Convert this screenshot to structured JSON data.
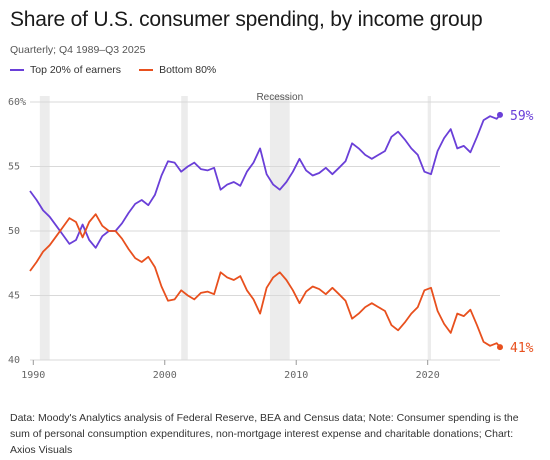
{
  "header": {
    "title": "Share of U.S. consumer spending, by income group",
    "subtitle": "Quarterly; Q4 1989–Q3 2025"
  },
  "footnote": "Data: Moody's Analytics analysis of Federal Reserve, BEA and Census data; Note: Consumer spending is the sum of personal consumption expenditures, non-mortgage interest expense and charitable donations; Chart: Axios Visuals",
  "colors": {
    "top20": "#6a3fd8",
    "bottom80": "#e8501e",
    "recession": "#ececec",
    "grid": "#d9d9d9"
  },
  "chart_data": {
    "type": "line",
    "xlim": [
      1989.75,
      2025.5
    ],
    "ylim": [
      40,
      60
    ],
    "x_ticks": [
      1990,
      2000,
      2010,
      2020
    ],
    "y_ticks": [
      40,
      45,
      50,
      55,
      60
    ],
    "y_tick_labels": [
      "40",
      "45",
      "50",
      "55",
      "60%"
    ],
    "grid": true,
    "legend_position": "top-left",
    "recession_label": "Recession",
    "recessions": [
      [
        1990.5,
        1991.25
      ],
      [
        2001.25,
        2001.75
      ],
      [
        2008.0,
        2009.5
      ],
      [
        2020.0,
        2020.25
      ]
    ],
    "series": [
      {
        "name": "Top 20% of earners",
        "end_label": "59%",
        "points": [
          [
            1989.75,
            53.1
          ],
          [
            1990.25,
            52.4
          ],
          [
            1990.75,
            51.6
          ],
          [
            1991.25,
            51.1
          ],
          [
            1991.75,
            50.4
          ],
          [
            1992.25,
            49.7
          ],
          [
            1992.75,
            49.0
          ],
          [
            1993.25,
            49.3
          ],
          [
            1993.75,
            50.5
          ],
          [
            1994.25,
            49.3
          ],
          [
            1994.75,
            48.7
          ],
          [
            1995.25,
            49.6
          ],
          [
            1995.75,
            50.0
          ],
          [
            1996.25,
            50.0
          ],
          [
            1996.75,
            50.6
          ],
          [
            1997.25,
            51.4
          ],
          [
            1997.75,
            52.1
          ],
          [
            1998.25,
            52.4
          ],
          [
            1998.75,
            52.0
          ],
          [
            1999.25,
            52.8
          ],
          [
            1999.75,
            54.3
          ],
          [
            2000.25,
            55.4
          ],
          [
            2000.75,
            55.3
          ],
          [
            2001.25,
            54.6
          ],
          [
            2001.75,
            55.0
          ],
          [
            2002.25,
            55.3
          ],
          [
            2002.75,
            54.8
          ],
          [
            2003.25,
            54.7
          ],
          [
            2003.75,
            54.9
          ],
          [
            2004.25,
            53.2
          ],
          [
            2004.75,
            53.6
          ],
          [
            2005.25,
            53.8
          ],
          [
            2005.75,
            53.5
          ],
          [
            2006.25,
            54.6
          ],
          [
            2006.75,
            55.3
          ],
          [
            2007.25,
            56.4
          ],
          [
            2007.75,
            54.4
          ],
          [
            2008.25,
            53.6
          ],
          [
            2008.75,
            53.2
          ],
          [
            2009.25,
            53.8
          ],
          [
            2009.75,
            54.6
          ],
          [
            2010.25,
            55.6
          ],
          [
            2010.75,
            54.7
          ],
          [
            2011.25,
            54.3
          ],
          [
            2011.75,
            54.5
          ],
          [
            2012.25,
            54.9
          ],
          [
            2012.75,
            54.4
          ],
          [
            2013.25,
            54.9
          ],
          [
            2013.75,
            55.4
          ],
          [
            2014.25,
            56.8
          ],
          [
            2014.75,
            56.4
          ],
          [
            2015.25,
            55.9
          ],
          [
            2015.75,
            55.6
          ],
          [
            2016.25,
            55.9
          ],
          [
            2016.75,
            56.2
          ],
          [
            2017.25,
            57.3
          ],
          [
            2017.75,
            57.7
          ],
          [
            2018.25,
            57.1
          ],
          [
            2018.75,
            56.4
          ],
          [
            2019.25,
            55.9
          ],
          [
            2019.75,
            54.6
          ],
          [
            2020.25,
            54.4
          ],
          [
            2020.75,
            56.2
          ],
          [
            2021.25,
            57.2
          ],
          [
            2021.75,
            57.9
          ],
          [
            2022.25,
            56.4
          ],
          [
            2022.75,
            56.6
          ],
          [
            2023.25,
            56.1
          ],
          [
            2023.75,
            57.3
          ],
          [
            2024.25,
            58.6
          ],
          [
            2024.75,
            58.9
          ],
          [
            2025.25,
            58.7
          ],
          [
            2025.5,
            59.0
          ]
        ]
      },
      {
        "name": "Bottom 80%",
        "end_label": "41%",
        "points": [
          [
            1989.75,
            46.9
          ],
          [
            1990.25,
            47.6
          ],
          [
            1990.75,
            48.4
          ],
          [
            1991.25,
            48.9
          ],
          [
            1991.75,
            49.6
          ],
          [
            1992.25,
            50.3
          ],
          [
            1992.75,
            51.0
          ],
          [
            1993.25,
            50.7
          ],
          [
            1993.75,
            49.5
          ],
          [
            1994.25,
            50.7
          ],
          [
            1994.75,
            51.3
          ],
          [
            1995.25,
            50.4
          ],
          [
            1995.75,
            50.0
          ],
          [
            1996.25,
            50.0
          ],
          [
            1996.75,
            49.4
          ],
          [
            1997.25,
            48.6
          ],
          [
            1997.75,
            47.9
          ],
          [
            1998.25,
            47.6
          ],
          [
            1998.75,
            48.0
          ],
          [
            1999.25,
            47.2
          ],
          [
            1999.75,
            45.7
          ],
          [
            2000.25,
            44.6
          ],
          [
            2000.75,
            44.7
          ],
          [
            2001.25,
            45.4
          ],
          [
            2001.75,
            45.0
          ],
          [
            2002.25,
            44.7
          ],
          [
            2002.75,
            45.2
          ],
          [
            2003.25,
            45.3
          ],
          [
            2003.75,
            45.1
          ],
          [
            2004.25,
            46.8
          ],
          [
            2004.75,
            46.4
          ],
          [
            2005.25,
            46.2
          ],
          [
            2005.75,
            46.5
          ],
          [
            2006.25,
            45.4
          ],
          [
            2006.75,
            44.7
          ],
          [
            2007.25,
            43.6
          ],
          [
            2007.75,
            45.6
          ],
          [
            2008.25,
            46.4
          ],
          [
            2008.75,
            46.8
          ],
          [
            2009.25,
            46.2
          ],
          [
            2009.75,
            45.4
          ],
          [
            2010.25,
            44.4
          ],
          [
            2010.75,
            45.3
          ],
          [
            2011.25,
            45.7
          ],
          [
            2011.75,
            45.5
          ],
          [
            2012.25,
            45.1
          ],
          [
            2012.75,
            45.6
          ],
          [
            2013.25,
            45.1
          ],
          [
            2013.75,
            44.6
          ],
          [
            2014.25,
            43.2
          ],
          [
            2014.75,
            43.6
          ],
          [
            2015.25,
            44.1
          ],
          [
            2015.75,
            44.4
          ],
          [
            2016.25,
            44.1
          ],
          [
            2016.75,
            43.8
          ],
          [
            2017.25,
            42.7
          ],
          [
            2017.75,
            42.3
          ],
          [
            2018.25,
            42.9
          ],
          [
            2018.75,
            43.6
          ],
          [
            2019.25,
            44.1
          ],
          [
            2019.75,
            45.4
          ],
          [
            2020.25,
            45.6
          ],
          [
            2020.75,
            43.8
          ],
          [
            2021.25,
            42.8
          ],
          [
            2021.75,
            42.1
          ],
          [
            2022.25,
            43.6
          ],
          [
            2022.75,
            43.4
          ],
          [
            2023.25,
            43.9
          ],
          [
            2023.75,
            42.7
          ],
          [
            2024.25,
            41.4
          ],
          [
            2024.75,
            41.1
          ],
          [
            2025.25,
            41.3
          ],
          [
            2025.5,
            41.0
          ]
        ]
      }
    ]
  }
}
